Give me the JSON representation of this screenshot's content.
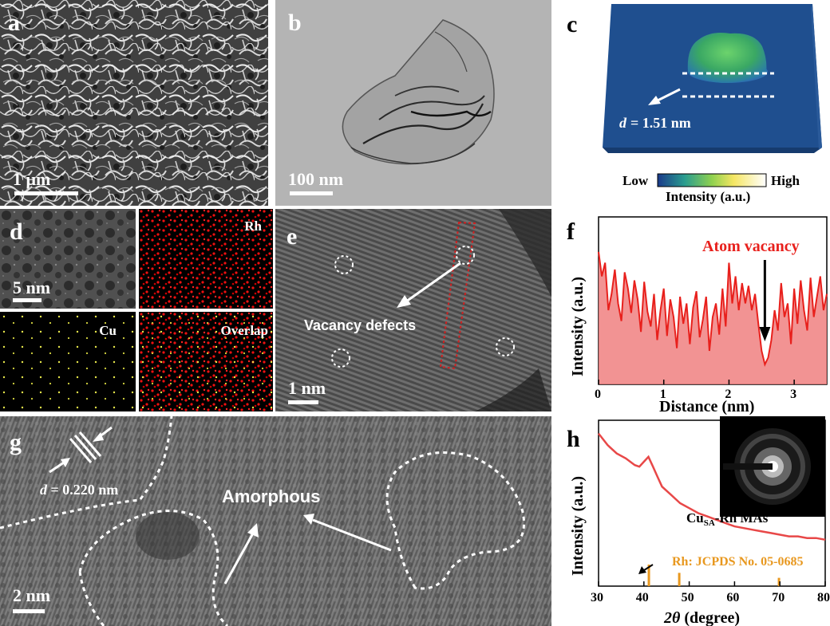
{
  "panels": {
    "a": {
      "label": "a",
      "scale": "1 μm"
    },
    "b": {
      "label": "b",
      "scale": "100 nm"
    },
    "c": {
      "label": "c",
      "d_prefix": "d",
      "d_value": "= 1.51 nm",
      "colorbar_low": "Low",
      "colorbar_high": "High",
      "colorbar_title": "Intensity (a.u.)"
    },
    "d": {
      "label": "d",
      "scale": "5 nm",
      "maps": [
        "Rh",
        "Cu",
        "Overlap"
      ]
    },
    "e": {
      "label": "e",
      "annotation": "Vacancy defects",
      "scale": "1 nm"
    },
    "f": {
      "label": "f",
      "annotation": "Atom vacancy",
      "xlabel": "Distance (nm)",
      "ylabel": "Intensity (a.u.)"
    },
    "g": {
      "label": "g",
      "d_prefix": "d",
      "d_value": "= 0.220 nm",
      "annotation": "Amorphous",
      "scale": "2 nm"
    },
    "h": {
      "label": "h",
      "series_label_main": "Cu",
      "series_label_sub": "SA",
      "series_label_rest": "-Rh MAs",
      "reference_label": "Rh: JCPDS No. 05-0685",
      "xlabel_var": "2θ",
      "xlabel_unit": " (degree)",
      "ylabel": "Intensity (a.u.)"
    }
  },
  "colors": {
    "accent_red": "#e8201c",
    "reference_orange": "#e8981f",
    "fill_red": "#f08080"
  },
  "chart_data": [
    {
      "type": "area",
      "panel": "f",
      "title": "",
      "xlabel": "Distance (nm)",
      "ylabel": "Intensity (a.u.)",
      "xlim": [
        0,
        3.5
      ],
      "xticks": [
        0,
        1,
        2,
        3
      ],
      "annotation": {
        "text": "Atom vacancy",
        "x": 2.55
      },
      "series": [
        {
          "x": [
            0,
            0.05,
            0.1,
            0.15,
            0.2,
            0.25,
            0.3,
            0.35,
            0.4,
            0.45,
            0.5,
            0.55,
            0.6,
            0.65,
            0.7,
            0.75,
            0.8,
            0.85,
            0.9,
            0.95,
            1.0,
            1.05,
            1.1,
            1.15,
            1.2,
            1.25,
            1.3,
            1.35,
            1.4,
            1.45,
            1.5,
            1.55,
            1.6,
            1.65,
            1.7,
            1.75,
            1.8,
            1.85,
            1.9,
            1.95,
            2.0,
            2.05,
            2.1,
            2.15,
            2.2,
            2.25,
            2.3,
            2.35,
            2.4,
            2.45,
            2.5,
            2.55,
            2.6,
            2.65,
            2.7,
            2.75,
            2.8,
            2.85,
            2.9,
            2.95,
            3.0,
            3.05,
            3.1,
            3.15,
            3.2,
            3.25,
            3.3,
            3.35,
            3.4,
            3.45,
            3.5
          ],
          "y": [
            0.93,
            0.75,
            0.85,
            0.5,
            0.62,
            0.8,
            0.55,
            0.42,
            0.78,
            0.66,
            0.48,
            0.72,
            0.58,
            0.34,
            0.71,
            0.49,
            0.38,
            0.62,
            0.28,
            0.5,
            0.66,
            0.31,
            0.58,
            0.45,
            0.22,
            0.6,
            0.4,
            0.55,
            0.25,
            0.52,
            0.64,
            0.3,
            0.43,
            0.6,
            0.2,
            0.45,
            0.55,
            0.32,
            0.66,
            0.38,
            0.85,
            0.55,
            0.75,
            0.5,
            0.7,
            0.55,
            0.68,
            0.5,
            0.62,
            0.4,
            0.2,
            0.1,
            0.15,
            0.28,
            0.5,
            0.35,
            0.7,
            0.45,
            0.55,
            0.25,
            0.66,
            0.4,
            0.72,
            0.5,
            0.35,
            0.74,
            0.45,
            0.6,
            0.75,
            0.5,
            0.62
          ]
        }
      ]
    },
    {
      "type": "line",
      "panel": "h",
      "title": "",
      "xlabel": "2θ (degree)",
      "ylabel": "Intensity (a.u.)",
      "xlim": [
        30,
        80
      ],
      "xticks": [
        30,
        40,
        50,
        60,
        70,
        80
      ],
      "series": [
        {
          "name": "CuSA-Rh MAs",
          "x": [
            30,
            32,
            34,
            36,
            38,
            39,
            40,
            41,
            42,
            43,
            44,
            46,
            48,
            50,
            52,
            54,
            56,
            58,
            60,
            62,
            64,
            66,
            68,
            70,
            72,
            74,
            76,
            78,
            80
          ],
          "y": [
            0.92,
            0.85,
            0.8,
            0.77,
            0.73,
            0.72,
            0.75,
            0.78,
            0.72,
            0.66,
            0.6,
            0.55,
            0.5,
            0.47,
            0.44,
            0.42,
            0.4,
            0.38,
            0.36,
            0.35,
            0.34,
            0.33,
            0.32,
            0.31,
            0.3,
            0.3,
            0.29,
            0.29,
            0.28
          ]
        }
      ],
      "reference_peaks": {
        "name": "Rh: JCPDS No. 05-0685",
        "x": [
          41.1,
          47.8,
          69.8
        ],
        "y": [
          0.13,
          0.08,
          0.05
        ]
      }
    }
  ]
}
